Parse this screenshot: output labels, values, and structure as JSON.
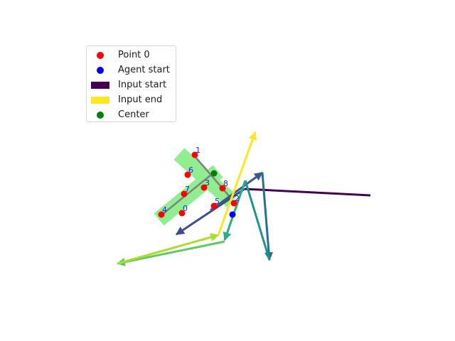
{
  "legend": {
    "items": [
      {
        "label": "Point 0",
        "kind": "marker",
        "color": "#ff0000"
      },
      {
        "label": "Agent start",
        "kind": "marker",
        "color": "#0000ff"
      },
      {
        "label": "Input start",
        "kind": "patch",
        "color": "#440154"
      },
      {
        "label": "Input end",
        "kind": "patch",
        "color": "#fde725"
      },
      {
        "label": "Center",
        "kind": "marker",
        "color": "#008000"
      }
    ]
  },
  "points": {
    "labels": [
      "0",
      "1",
      "2",
      "3",
      "4",
      "5",
      "6",
      "7",
      "8"
    ],
    "color": "#ff0000",
    "label_color": "#1f1fcc"
  },
  "colors": {
    "shape_fill": "#90ee90",
    "skeleton": "#808080",
    "agent": "#0000ff",
    "center": "#008000"
  }
}
